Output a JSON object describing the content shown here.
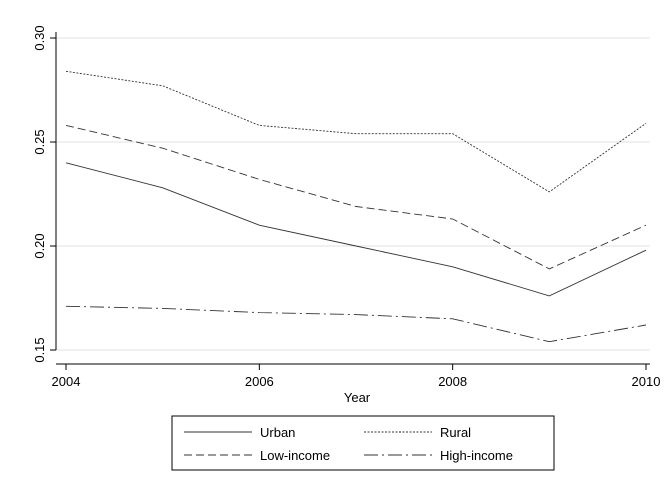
{
  "chart_data": {
    "type": "line",
    "title": "",
    "xlabel": "Year",
    "ylabel": "",
    "x": [
      2004,
      2005,
      2006,
      2007,
      2008,
      2009,
      2010
    ],
    "xlim": [
      2004,
      2010
    ],
    "ylim": [
      0.15,
      0.3
    ],
    "xticks": [
      2004,
      2006,
      2008,
      2010
    ],
    "yticks": [
      0.15,
      0.2,
      0.25,
      0.3
    ],
    "ytick_labels": [
      "0.15",
      "0.20",
      "0.25",
      "0.30"
    ],
    "grid": "horizontal",
    "legend_position": "bottom",
    "series": [
      {
        "name": "Urban",
        "style": "solid",
        "values": [
          0.24,
          0.228,
          0.21,
          0.2,
          0.19,
          0.176,
          0.198
        ]
      },
      {
        "name": "Rural",
        "style": "dotted",
        "values": [
          0.284,
          0.277,
          0.258,
          0.254,
          0.254,
          0.226,
          0.259
        ]
      },
      {
        "name": "Low-income",
        "style": "dashed",
        "values": [
          0.258,
          0.247,
          0.232,
          0.219,
          0.213,
          0.189,
          0.21
        ]
      },
      {
        "name": "High-income",
        "style": "longdash-dot",
        "values": [
          0.171,
          0.17,
          0.168,
          0.167,
          0.165,
          0.154,
          0.162
        ]
      }
    ]
  }
}
